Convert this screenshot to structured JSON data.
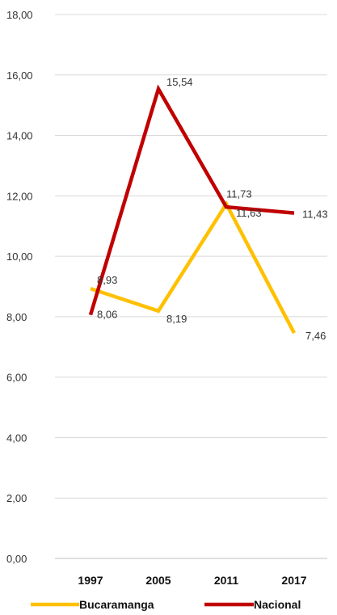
{
  "chart_data": {
    "type": "line",
    "title": "",
    "xlabel": "",
    "ylabel": "",
    "categories": [
      "1997",
      "2005",
      "2011",
      "2017"
    ],
    "ylim": [
      0,
      18
    ],
    "y_ticks": [
      "0,00",
      "2,00",
      "4,00",
      "6,00",
      "8,00",
      "10,00",
      "12,00",
      "14,00",
      "16,00",
      "18,00"
    ],
    "grid": true,
    "legend_position": "bottom",
    "series": [
      {
        "name": "Bucaramanga",
        "color": "#FFC000",
        "values": [
          8.93,
          8.19,
          11.73,
          7.46
        ],
        "labels": [
          "8,93",
          "8,19",
          "11,73",
          "7,46"
        ]
      },
      {
        "name": "Nacional",
        "color": "#C00000",
        "values": [
          8.06,
          15.54,
          11.63,
          11.43
        ],
        "labels": [
          "8,06",
          "15,54",
          "11,63",
          "11,43"
        ]
      }
    ]
  }
}
